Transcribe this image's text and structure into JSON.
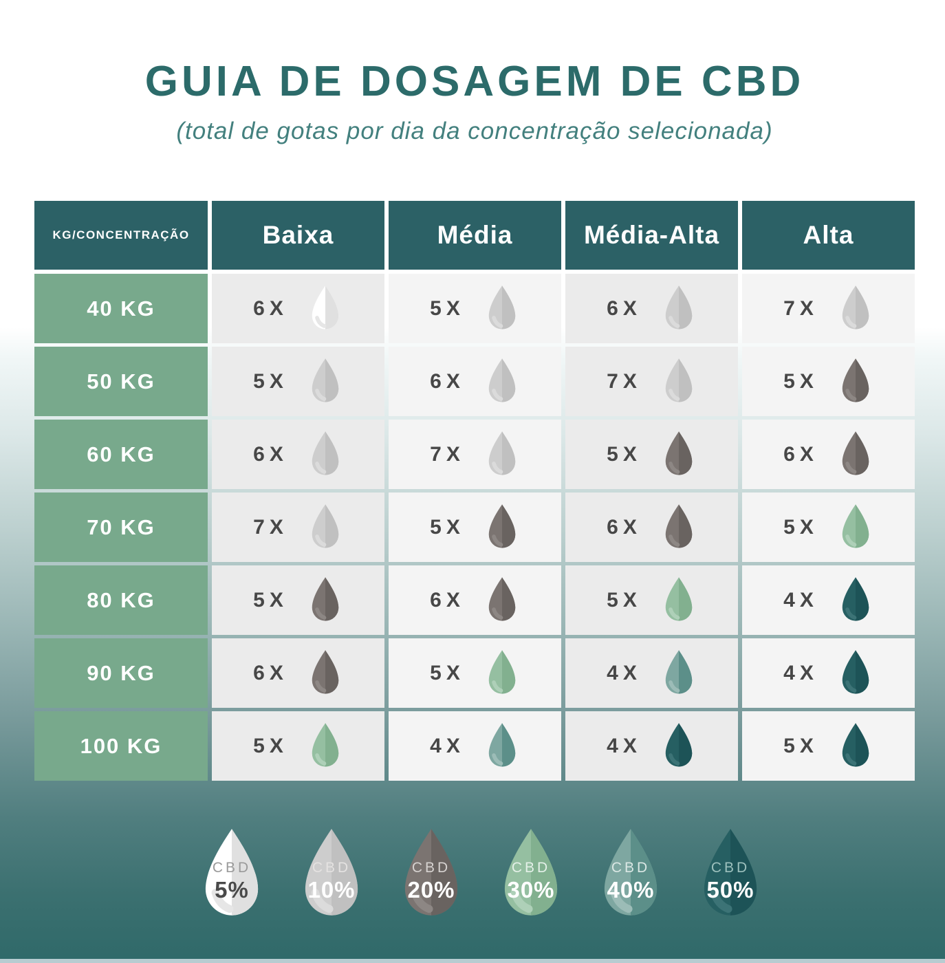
{
  "page": {
    "title": "GUIA DE DOSAGEM DE CBD",
    "subtitle": "(total de gotas por dia da concentração selecionada)"
  },
  "colors": {
    "title_text": "#2c6b6a",
    "subtitle_text": "#43807e",
    "header_bg": "#2c6166",
    "header_text": "#ffffff",
    "row_label_bg": "#78a98c",
    "row_label_text": "#ffffff",
    "cell_bg_odd": "#ebebeb",
    "cell_bg_even": "#f4f4f4",
    "dose_text": "#474747",
    "page_teal": "#2f6969",
    "bottom_strip": "#b7ccd1"
  },
  "concentrations": {
    "c5": {
      "id": "cbd-5",
      "percent": "5%",
      "light": "#ffffff",
      "dark": "#e0e0e0",
      "highlight": "#e6e6e6",
      "pct_color": "#4a4a4a",
      "cbd_color": "#9a9a9a"
    },
    "c10": {
      "id": "cbd-10",
      "percent": "10%",
      "light": "#cdcdcd",
      "dark": "#c0c0c0",
      "highlight": "#dbdbdb",
      "pct_color": "#ffffff",
      "cbd_color": "#e4e2e1"
    },
    "c20": {
      "id": "cbd-20",
      "percent": "20%",
      "light": "#7b7471",
      "dark": "#696360",
      "highlight": "#8d8784",
      "pct_color": "#ffffff",
      "cbd_color": "#d6d2d0"
    },
    "c30": {
      "id": "cbd-30",
      "percent": "30%",
      "light": "#95bfa1",
      "dark": "#82b08f",
      "highlight": "#aed0b8",
      "pct_color": "#ffffff",
      "cbd_color": "#e4f0e8"
    },
    "c40": {
      "id": "cbd-40",
      "percent": "40%",
      "light": "#7ea7a1",
      "dark": "#5c8f89",
      "highlight": "#9cbcb7",
      "pct_color": "#ffffff",
      "cbd_color": "#dae7e4"
    },
    "c50": {
      "id": "cbd-50",
      "percent": "50%",
      "light": "#265f62",
      "dark": "#1d5357",
      "highlight": "#3c7376",
      "pct_color": "#ffffff",
      "cbd_color": "#9dc0bd"
    }
  },
  "table": {
    "corner_header": "KG/CONCENTRAÇÃO",
    "columns": [
      "Baixa",
      "Média",
      "Média-Alta",
      "Alta"
    ],
    "rows": [
      {
        "weight": "40 KG",
        "cells": [
          {
            "times": "6X",
            "conc": "c5"
          },
          {
            "times": "5X",
            "conc": "c10"
          },
          {
            "times": "6X",
            "conc": "c10"
          },
          {
            "times": "7X",
            "conc": "c10"
          }
        ]
      },
      {
        "weight": "50 KG",
        "cells": [
          {
            "times": "5X",
            "conc": "c10"
          },
          {
            "times": "6X",
            "conc": "c10"
          },
          {
            "times": "7X",
            "conc": "c10"
          },
          {
            "times": "5X",
            "conc": "c20"
          }
        ]
      },
      {
        "weight": "60 KG",
        "cells": [
          {
            "times": "6X",
            "conc": "c10"
          },
          {
            "times": "7X",
            "conc": "c10"
          },
          {
            "times": "5X",
            "conc": "c20"
          },
          {
            "times": "6X",
            "conc": "c20"
          }
        ]
      },
      {
        "weight": "70 KG",
        "cells": [
          {
            "times": "7X",
            "conc": "c10"
          },
          {
            "times": "5X",
            "conc": "c20"
          },
          {
            "times": "6X",
            "conc": "c20"
          },
          {
            "times": "5X",
            "conc": "c30"
          }
        ]
      },
      {
        "weight": "80 KG",
        "cells": [
          {
            "times": "5X",
            "conc": "c20"
          },
          {
            "times": "6X",
            "conc": "c20"
          },
          {
            "times": "5X",
            "conc": "c30"
          },
          {
            "times": "4X",
            "conc": "c50"
          }
        ]
      },
      {
        "weight": "90 KG",
        "cells": [
          {
            "times": "6X",
            "conc": "c20"
          },
          {
            "times": "5X",
            "conc": "c30"
          },
          {
            "times": "4X",
            "conc": "c40"
          },
          {
            "times": "4X",
            "conc": "c50"
          }
        ]
      },
      {
        "weight": "100 KG",
        "cells": [
          {
            "times": "5X",
            "conc": "c30"
          },
          {
            "times": "4X",
            "conc": "c40"
          },
          {
            "times": "4X",
            "conc": "c50"
          },
          {
            "times": "5X",
            "conc": "c50"
          }
        ]
      }
    ]
  },
  "legend": {
    "cbd_label": "CBD",
    "items": [
      {
        "conc": "c5"
      },
      {
        "conc": "c10"
      },
      {
        "conc": "c20"
      },
      {
        "conc": "c30"
      },
      {
        "conc": "c40"
      },
      {
        "conc": "c50"
      }
    ]
  }
}
